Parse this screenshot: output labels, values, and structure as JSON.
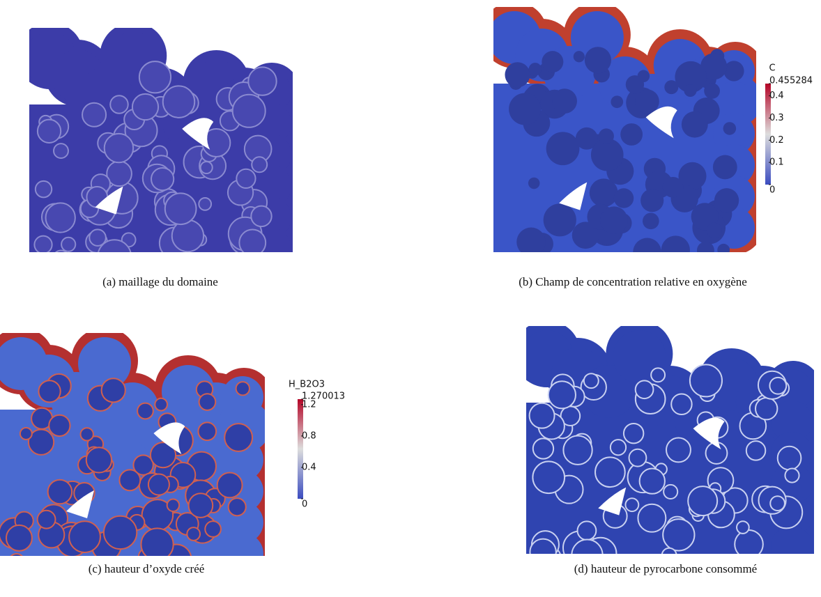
{
  "panels": [
    {
      "caption": "(a) maillage du domaine"
    },
    {
      "caption": "(b) Champ de concentration relative en oxygène",
      "colorbar": {
        "title": "C",
        "ticks": [
          0.455284,
          0.4,
          0.3,
          0.2,
          0.1,
          0
        ]
      }
    },
    {
      "caption": "(c) hauteur d’oxyde créé",
      "colorbar": {
        "title": "H_B2O3",
        "ticks": [
          1.270013,
          1.2,
          0.8,
          0.4,
          0
        ]
      }
    },
    {
      "caption": "(d) hauteur de pyrocarbone consommé"
    }
  ]
}
